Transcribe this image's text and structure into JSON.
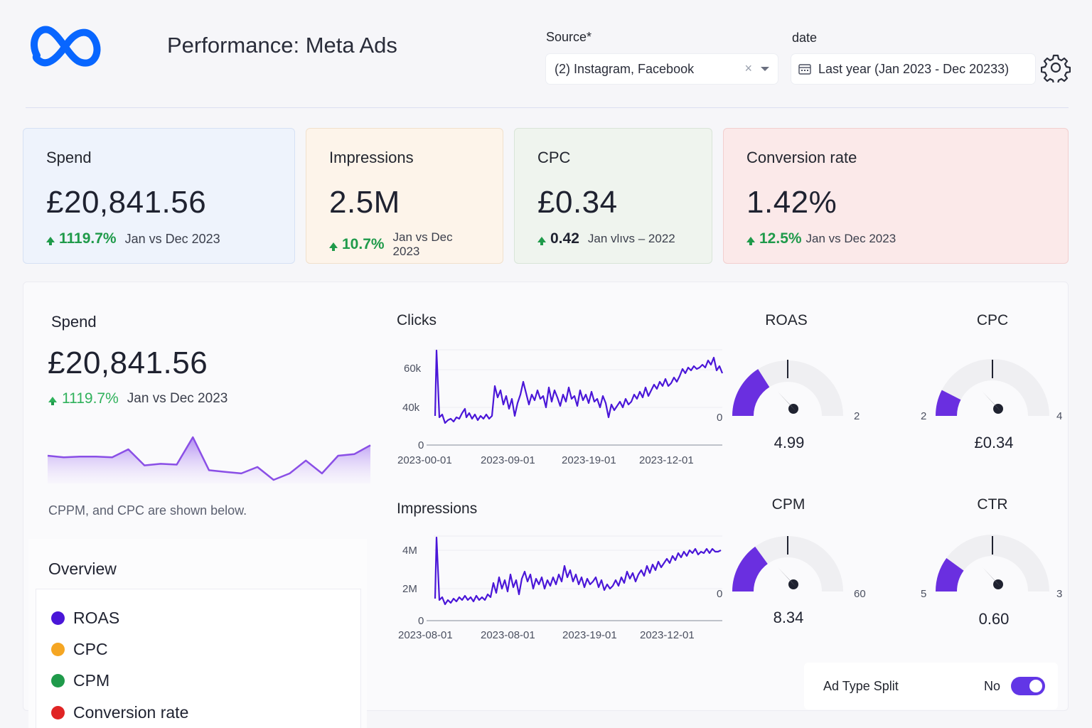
{
  "header": {
    "title": "Performance: Meta Ads",
    "source_label": "Source*",
    "source_value": "(2) Instagram, Facebook",
    "source_clear": "×",
    "date_label": "date",
    "date_value": "Last year (Jan 2023 - Dec 20233)",
    "logo_icon": "meta-logo-icon",
    "brand_color": "#0866ff"
  },
  "kpis": [
    {
      "label": "Spend",
      "value": "£20,841.56",
      "delta": "1119.7%",
      "compare": "Jan vs Dec 2023"
    },
    {
      "label": "Impressions",
      "value": "2.5M",
      "delta": "10.7%",
      "compare": "Jan vs Dec 2023"
    },
    {
      "label": "CPC",
      "value": "£0.34",
      "delta": "0.42",
      "compare": "Jan vlıvs – 2022"
    },
    {
      "label": "Conversion rate",
      "value": "1.42%",
      "delta": "12.5%",
      "compare": "Jan vs Dec 2023"
    }
  ],
  "spend_panel": {
    "label": "Spend",
    "value": "£20,841.56",
    "delta": "1119.7%",
    "compare": "Jan vs Dec 2023",
    "note": "CPPM, and CPC are shown below.",
    "sparkline": [
      42,
      40,
      41,
      41,
      40,
      50,
      30,
      32,
      31,
      65,
      24,
      22,
      20,
      28,
      12,
      20,
      36,
      20,
      42,
      44,
      55
    ]
  },
  "overview": {
    "title": "Overview",
    "items": [
      {
        "label": "ROAS",
        "color": "#4a16d8"
      },
      {
        "label": "CPC",
        "color": "#f5a623"
      },
      {
        "label": "CPM",
        "color": "#1f9a4a"
      },
      {
        "label": "Conversion rate",
        "color": "#e02424"
      }
    ]
  },
  "charts": {
    "clicks": {
      "title": "Clicks",
      "y_ticks": [
        "60k",
        "40k",
        "0"
      ],
      "x_ticks": [
        "2023-00-01",
        "2023-09-01",
        "2023-19-01",
        "2023-12-01"
      ],
      "right_zero": "0"
    },
    "impressions": {
      "title": "Impressions",
      "y_ticks": [
        "4M",
        "2M",
        "0"
      ],
      "x_ticks": [
        "2023-08-01",
        "2023-08-01",
        "2023-19-01",
        "2023-12-01"
      ],
      "right_zero": "0"
    }
  },
  "gauges": [
    {
      "title": "ROAS",
      "value": "4.99",
      "min": "",
      "max": "2",
      "fraction": 0.32
    },
    {
      "title": "CPC",
      "value": "£0.34",
      "min": "2",
      "max": "4",
      "fraction": 0.15
    },
    {
      "title": "CPM",
      "value": "8.34",
      "min": "",
      "max": "60",
      "fraction": 0.3
    },
    {
      "title": "CTR",
      "value": "0.60",
      "min": "5",
      "max": "3",
      "fraction": 0.2
    }
  ],
  "toggle": {
    "label": "Ad Type Split",
    "state": "No"
  },
  "colors": {
    "accent": "#6236e6",
    "line": "#4a16d8",
    "positive": "#1f9a4a"
  }
}
